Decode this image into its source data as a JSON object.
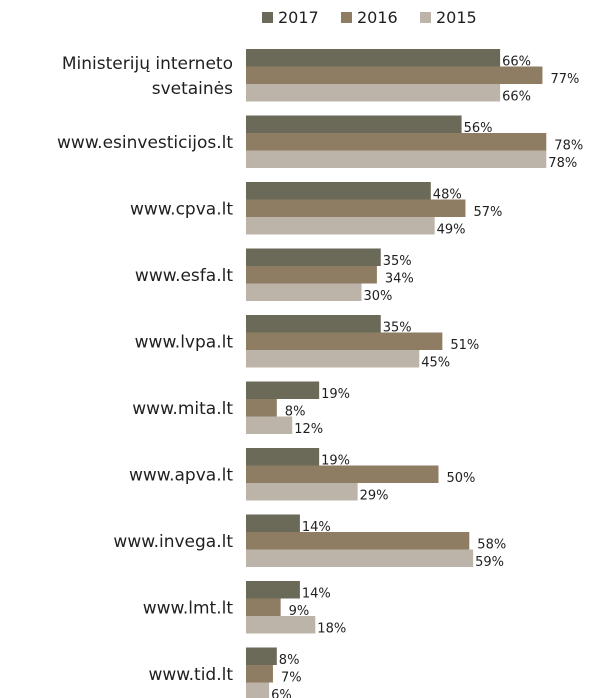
{
  "chart_data": {
    "type": "bar",
    "orientation": "horizontal",
    "legend_position": "top",
    "grid": false,
    "value_format": "percent",
    "xlim": [
      0,
      100
    ],
    "categories": [
      [
        "Ministerijų interneto",
        "svetainės"
      ],
      [
        "www.esinvesticijos.lt"
      ],
      [
        "www.cpva.lt"
      ],
      [
        "www.esfa.lt"
      ],
      [
        "www.lvpa.lt"
      ],
      [
        "www.mita.lt"
      ],
      [
        "www.apva.lt"
      ],
      [
        "www.invega.lt"
      ],
      [
        "www.lmt.lt"
      ],
      [
        "www.tid.lt"
      ]
    ],
    "series": [
      {
        "name": "2017",
        "color": "#6b6a58",
        "values": [
          66,
          56,
          48,
          35,
          35,
          19,
          19,
          14,
          14,
          8
        ]
      },
      {
        "name": "2016",
        "color": "#8f7d63",
        "values": [
          77,
          78,
          57,
          34,
          51,
          8,
          50,
          58,
          9,
          7
        ]
      },
      {
        "name": "2015",
        "color": "#bcb4a8",
        "values": [
          66,
          78,
          49,
          30,
          45,
          12,
          29,
          59,
          18,
          6
        ]
      }
    ]
  }
}
